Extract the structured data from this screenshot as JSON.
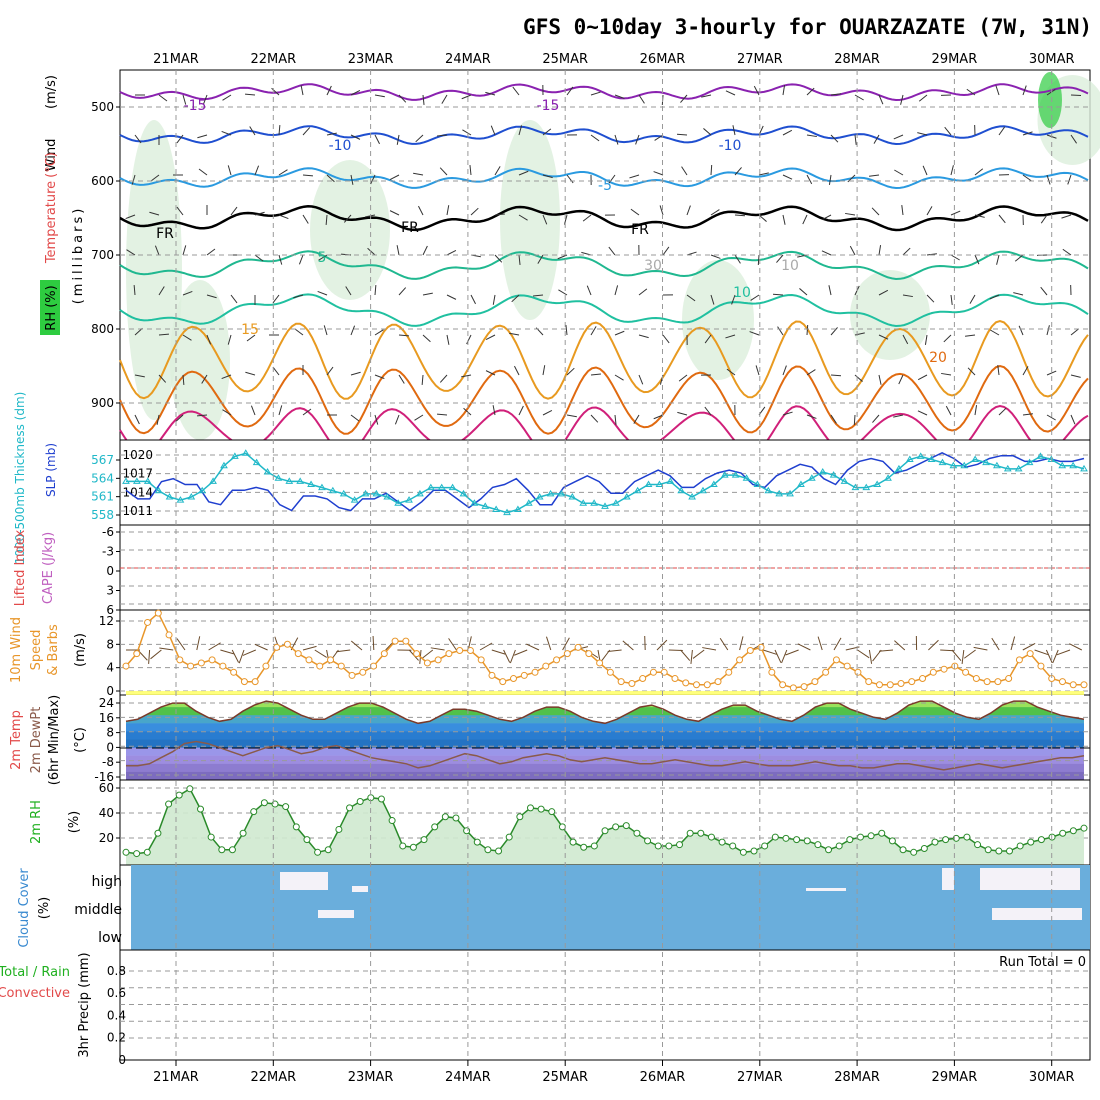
{
  "title": "GFS 0~10day 3-hourly for OUARZAZATE (7W, 31N)",
  "x_axis": {
    "date_labels": [
      "21MAR",
      "22MAR",
      "23MAR",
      "24MAR",
      "25MAR",
      "26MAR",
      "27MAR",
      "28MAR",
      "29MAR",
      "30MAR"
    ],
    "hours_total": 246
  },
  "panels": {
    "upper": {
      "ylabels": [
        "Wind",
        "(m/s)",
        "Temperature",
        "(°C)",
        "(millibars)",
        "RH (%)"
      ],
      "pressure_ticks": [
        "500",
        "600",
        "700",
        "800",
        "900"
      ],
      "contour_labels": [
        "-15",
        "-15",
        "-10",
        "-10",
        "-5",
        "FR",
        "FR",
        "FR",
        "-5",
        "5",
        "10",
        "15",
        "20",
        "30",
        "10"
      ]
    },
    "slp": {
      "ylabel_left": "1000-500mb Thickness (dm)",
      "ylabel_right": "SLP (mb)",
      "thickness_ticks": [
        "567",
        "564",
        "561",
        "558"
      ],
      "slp_ticks": [
        "1020",
        "1017",
        "1014",
        "1011"
      ]
    },
    "cape": {
      "ylabel_left": "Lifted Index",
      "ylabel_right": "CAPE (J/kg)",
      "ticks": [
        "-6",
        "-3",
        "0",
        "3",
        "6"
      ]
    },
    "wind": {
      "ylabel_left": "10m Wind",
      "ylabel_mid": "Speed",
      "ylabel_right": "& Barbs",
      "ylabel_unit": "(m/s)",
      "ticks": [
        "12",
        "8",
        "4",
        "0"
      ]
    },
    "temp": {
      "ylabels": [
        "2m Temp",
        "2m DewPt",
        "(6hr Min/Max)",
        "(°C)"
      ],
      "ticks": [
        "24",
        "16",
        "8",
        "0",
        "-8",
        "-16"
      ]
    },
    "rh": {
      "ylabel": "2m RH",
      "unit": "(%)",
      "ticks": [
        "60",
        "40",
        "20"
      ]
    },
    "cloud": {
      "ylabel": "Cloud Cover",
      "unit": "(%)",
      "levels": [
        "high",
        "middle",
        "low"
      ]
    },
    "precip": {
      "ylabel": "3hr Precip (mm)",
      "legend_total": "Total / Rain",
      "legend_conv": "Convective",
      "run_total": "Run Total = 0",
      "ticks": [
        "0.8",
        "0.6",
        "0.4",
        "0.2",
        "0"
      ]
    }
  },
  "colors": {
    "slp": "#1f3fcf",
    "thickness": "#20b8c8",
    "wind_speed": "#e8962a",
    "temp_line": "#7a3a2a",
    "dewpoint": "#8a5a4a",
    "rh_line": "#2a8a2a",
    "cloud": "#6aaedc",
    "rh_label": "#20b020",
    "temp_label": "#e24a4a",
    "cape_label": "#c060c0",
    "grid": "#999999"
  },
  "chart_data": [
    {
      "type": "line",
      "name": "SLP and 1000-500mb thickness",
      "ylim_slp": [
        1009,
        1022
      ],
      "ylim_thickness": [
        557,
        569
      ],
      "series": [
        {
          "name": "SLP (mb)",
          "values": [
            1014.5,
            1013,
            1013,
            1016,
            1016.5,
            1015.5,
            1015.5,
            1012.5,
            1012,
            1014.5,
            1014.5,
            1015,
            1014.5,
            1012,
            1011,
            1013.5,
            1013.5,
            1013,
            1011.5,
            1011,
            1013,
            1013,
            1014,
            1012.5,
            1011,
            1012.5,
            1014.5,
            1014.5,
            1013,
            1011.5,
            1013,
            1015,
            1015.5,
            1016.5,
            1014.5,
            1012,
            1012,
            1015,
            1016,
            1017,
            1016,
            1014,
            1014,
            1016,
            1017,
            1018,
            1017,
            1015,
            1015,
            1016.5,
            1017.5,
            1018,
            1017.5,
            1015.5,
            1015,
            1017,
            1018,
            1019,
            1018.5,
            1016.5,
            1015.5,
            1018,
            1019.5,
            1020,
            1019.5,
            1017.5,
            1018,
            1019,
            1020,
            1021,
            1020,
            1018.5,
            1019,
            1020,
            1020.5,
            1020.5,
            1019.5,
            1019.5,
            1020,
            1019.5,
            1019.5,
            1020
          ]
        },
        {
          "name": "1000-500mb thickness (dm)",
          "values": [
            563.5,
            563.5,
            563.5,
            562,
            561,
            560.5,
            561,
            562,
            563.5,
            566,
            567.5,
            568,
            566.5,
            565,
            564,
            563.5,
            563.5,
            563,
            562.5,
            562,
            561.5,
            560.5,
            561.5,
            561.5,
            561,
            560,
            560.5,
            561.5,
            562.5,
            562.5,
            562.5,
            561.5,
            560,
            559.5,
            559,
            558.5,
            559,
            560,
            561,
            561.5,
            561.5,
            561,
            560,
            560,
            559.5,
            560,
            561,
            562,
            563,
            563,
            563.5,
            562,
            561,
            562,
            563,
            564.5,
            564.5,
            564,
            563,
            562,
            561.5,
            561.5,
            563,
            564,
            565,
            564.5,
            563.5,
            562.5,
            562.5,
            563,
            564,
            565.5,
            567,
            567.5,
            567,
            566.5,
            566,
            566,
            567,
            566.5,
            566,
            565.5,
            565.5,
            566.5,
            567.5,
            567,
            566,
            566,
            565.5
          ]
        }
      ]
    },
    {
      "type": "line",
      "name": "10m wind speed",
      "ylim": [
        0,
        13
      ],
      "series": [
        {
          "name": "10m wind speed (m/s)",
          "values": [
            4,
            6,
            11,
            12.5,
            9,
            5,
            4,
            4.5,
            5,
            4,
            3,
            1.5,
            1.5,
            4,
            7,
            7.5,
            6,
            5,
            4,
            5,
            4,
            2.5,
            3,
            4,
            6,
            8,
            8,
            6,
            4.5,
            5,
            6,
            6.5,
            6.5,
            5,
            2.5,
            1.5,
            2,
            2.5,
            3,
            4,
            5,
            6,
            7,
            6,
            4.5,
            3,
            1.5,
            1.2,
            2,
            3,
            3,
            2,
            1.3,
            1,
            1,
            1.5,
            3,
            5,
            6.5,
            7,
            3,
            1,
            0.5,
            0.7,
            1.5,
            3,
            5,
            4,
            3,
            1.5,
            1,
            1,
            1.2,
            1.5,
            2,
            3,
            3.5,
            4,
            3,
            2,
            1.5,
            1.5,
            2,
            5,
            6,
            4,
            2,
            1.5,
            1,
            1
          ]
        }
      ]
    },
    {
      "type": "area",
      "name": "2m temperature and dewpoint",
      "ylim": [
        -16,
        26
      ],
      "series": [
        {
          "name": "2m Temp (°C)",
          "values": [
            13,
            14,
            17,
            20,
            22,
            22,
            18,
            15,
            13,
            14,
            18,
            21,
            23,
            22,
            19,
            16,
            14,
            14,
            17,
            20,
            22,
            22,
            20,
            17,
            14,
            12,
            13,
            16,
            19,
            19,
            18,
            16,
            14,
            13,
            15,
            18,
            20,
            20,
            18,
            15,
            13,
            12,
            14,
            17,
            20,
            21,
            19,
            16,
            14,
            13,
            16,
            19,
            21,
            21,
            18,
            16,
            14,
            13,
            16,
            20,
            22,
            22,
            19,
            17,
            15,
            14,
            17,
            21,
            23,
            23,
            20,
            17,
            15,
            14,
            17,
            21,
            23,
            23,
            20,
            18,
            16,
            15,
            14
          ]
        },
        {
          "name": "2m DewPt (°C)",
          "values": [
            -9,
            -9,
            -8,
            -5,
            -2,
            2,
            3,
            2,
            0,
            -2,
            -4,
            -2,
            0,
            1,
            -1,
            -3,
            -2,
            0,
            1,
            -1,
            -3,
            -5,
            -6,
            -7,
            -8,
            -10,
            -9,
            -7,
            -5,
            -3,
            -4,
            -6,
            -8,
            -7,
            -5,
            -4,
            -3,
            -4,
            -6,
            -7,
            -6,
            -5,
            -6,
            -7,
            -8,
            -8,
            -7,
            -6,
            -7,
            -8,
            -9,
            -9,
            -8,
            -7,
            -8,
            -9,
            -9,
            -9,
            -8,
            -7,
            -8,
            -9,
            -9,
            -10,
            -10,
            -9,
            -8,
            -8,
            -9,
            -10,
            -11,
            -10,
            -9,
            -8,
            -9,
            -10,
            -9,
            -8,
            -7,
            -6,
            -5,
            -5,
            -4
          ]
        }
      ]
    },
    {
      "type": "area",
      "name": "2m relative humidity",
      "ylim": [
        0,
        63
      ],
      "series": [
        {
          "name": "2m RH (%)",
          "values": [
            10,
            9,
            10,
            25,
            48,
            55,
            60,
            44,
            22,
            12,
            12,
            25,
            42,
            49,
            48,
            46,
            30,
            20,
            10,
            12,
            28,
            45,
            50,
            53,
            52,
            35,
            15,
            14,
            20,
            30,
            38,
            37,
            27,
            18,
            12,
            11,
            22,
            38,
            45,
            44,
            42,
            30,
            18,
            14,
            15,
            27,
            30,
            31,
            25,
            19,
            15,
            15,
            16,
            25,
            25,
            22,
            18,
            15,
            10,
            11,
            15,
            22,
            21,
            20,
            19,
            16,
            12,
            15,
            20,
            22,
            23,
            25,
            19,
            12,
            10,
            13,
            18,
            20,
            21,
            22,
            16,
            12,
            11,
            11,
            15,
            18,
            20,
            22,
            25,
            27,
            29
          ]
        }
      ]
    },
    {
      "type": "bar",
      "name": "3hr precipitation",
      "ylim": [
        0,
        0.95
      ],
      "values": []
    }
  ]
}
